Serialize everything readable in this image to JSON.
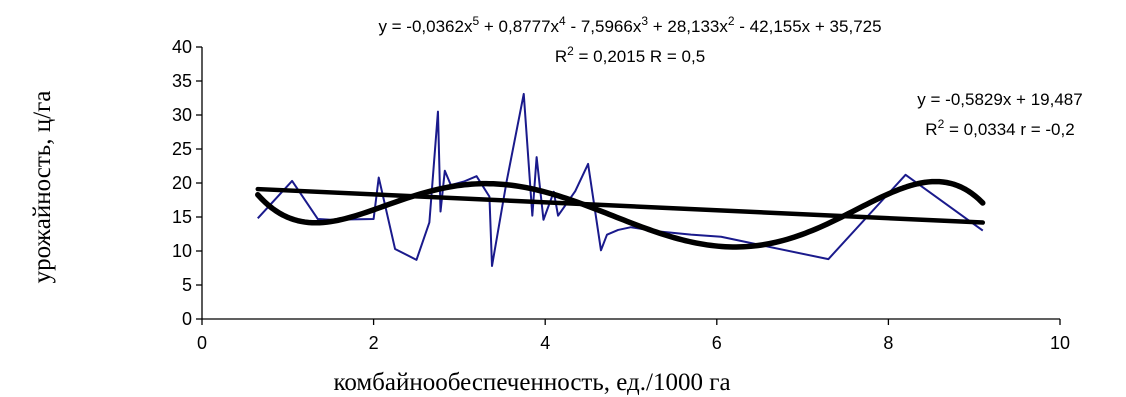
{
  "chart_data": {
    "type": "line",
    "xlabel": "комбайнообеспеченность, ед./1000 га",
    "ylabel": "урожайность, ц/га",
    "xlim": [
      0,
      10
    ],
    "ylim": [
      0,
      40
    ],
    "xticks": [
      "0",
      "2",
      "4",
      "6",
      "8",
      "10"
    ],
    "yticks": [
      "0",
      "5",
      "10",
      "15",
      "20",
      "25",
      "30",
      "35",
      "40"
    ],
    "grid": false,
    "legend": "none",
    "annotations": {
      "poly_equation_main": "y = -0,0362x",
      "poly_equation_s1": "5",
      "poly_equation_m1": " + 0,8777x",
      "poly_equation_s2": "4",
      "poly_equation_m2": " - 7,5966x",
      "poly_equation_s3": "3",
      "poly_equation_m3": " + 28,133x",
      "poly_equation_s4": "2",
      "poly_equation_end": " - 42,155x + 35,725",
      "poly_r2_a": "R",
      "poly_r2_sup": "2",
      "poly_r2_b": " = 0,2015 R = 0,5",
      "linear_equation": "y = -0,5829x + 19,487",
      "linear_r2_a": "R",
      "linear_r2_sup": "2",
      "linear_r2_b": " = 0,0334 r = -0,2"
    },
    "series": [
      {
        "type": "line",
        "color": "#1a1a8c",
        "x": [
          0.65,
          1.05,
          1.35,
          1.5,
          2.0,
          2.06,
          2.25,
          2.5,
          2.65,
          2.75,
          2.78,
          2.83,
          2.9,
          3.05,
          3.2,
          3.35,
          3.38,
          3.55,
          3.75,
          3.85,
          3.9,
          3.98,
          4.1,
          4.15,
          4.35,
          4.5,
          4.65,
          4.72,
          4.85,
          5.0,
          5.3,
          5.7,
          6.05,
          6.5,
          7.3,
          8.2,
          9.1
        ],
        "y": [
          14.8,
          20.3,
          14.7,
          14.6,
          14.7,
          20.8,
          10.3,
          8.7,
          14.2,
          30.5,
          15.8,
          21.8,
          19.7,
          20.2,
          21.0,
          18.0,
          7.8,
          20.2,
          33.1,
          15.2,
          23.8,
          14.6,
          18.7,
          15.2,
          18.8,
          22.8,
          10.1,
          12.4,
          13.1,
          13.5,
          12.9,
          12.4,
          12.1,
          10.9,
          8.8,
          21.2,
          13.0
        ]
      },
      {
        "type": "poly5",
        "color": "#000000",
        "coefficients": [
          -0.0362,
          0.8777,
          -7.5966,
          28.133,
          -42.155,
          35.725
        ],
        "x_range": [
          0.65,
          9.1
        ]
      },
      {
        "type": "linear",
        "color": "#000000",
        "slope": -0.5829,
        "intercept": 19.487,
        "x_range": [
          0.65,
          9.1
        ]
      }
    ]
  }
}
